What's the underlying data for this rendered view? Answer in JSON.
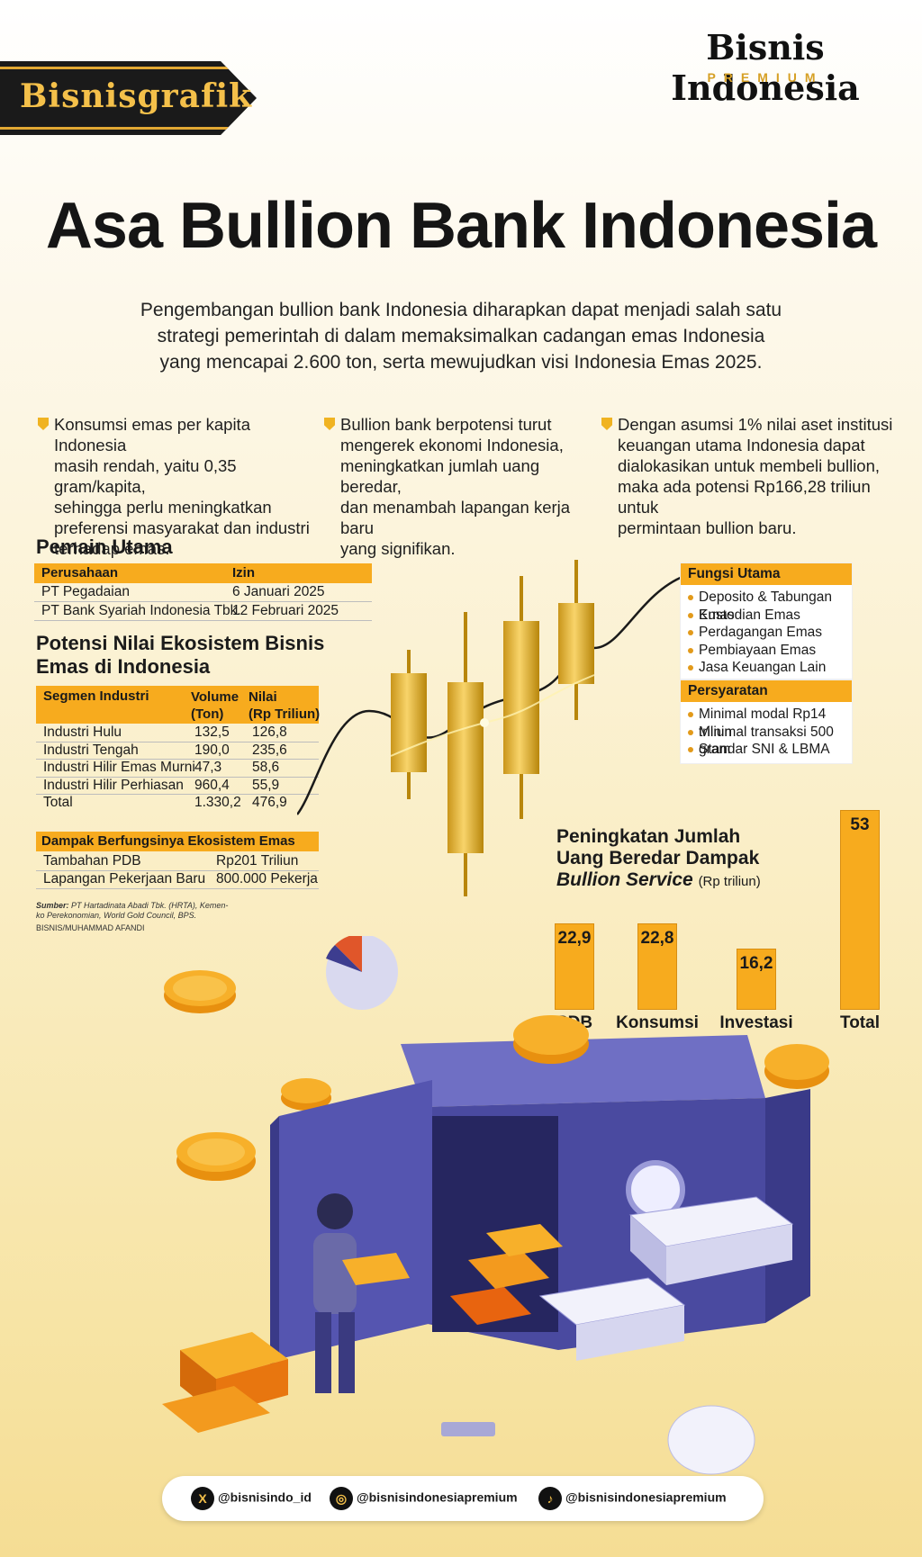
{
  "header": {
    "brand_tag": "Bisnisgrafik",
    "publisher": "Bisnis Indonesia",
    "publisher_sub": "PREMIUM"
  },
  "title": "Asa Bullion Bank Indonesia",
  "intro": "Pengembangan bullion bank Indonesia diharapkan dapat menjadi salah satu strategi pemerintah di dalam memaksimalkan cadangan emas Indonesia yang mencapai 2.600 ton, serta mewujudkan visi Indonesia Emas 2025.",
  "bullets": [
    {
      "lines": [
        "Konsumsi emas per kapita Indonesia",
        "masih rendah, yaitu 0,35 gram/kapita,",
        "sehingga perlu meningkatkan",
        "preferensi masyarakat dan industri",
        "terhadap emas."
      ]
    },
    {
      "lines": [
        "Bullion bank berpotensi turut",
        "mengerek ekonomi Indonesia,",
        "meningkatkan jumlah uang beredar,",
        "dan menambah lapangan kerja baru",
        "yang signifikan."
      ]
    },
    {
      "lines": [
        "Dengan asumsi 1% nilai aset institusi",
        "keuangan utama Indonesia dapat",
        "dialokasikan untuk membeli bullion,",
        "maka ada potensi  Rp166,28 triliun untuk",
        "permintaan bullion baru."
      ]
    }
  ],
  "pemain": {
    "heading": "Pemain Utama",
    "col_company": "Perusahaan",
    "col_permit": "Izin",
    "rows": [
      {
        "company": "PT Pegadaian",
        "permit": "6 Januari 2025"
      },
      {
        "company": "PT Bank Syariah Indonesia Tbk.",
        "permit": "12 Februari 2025"
      }
    ]
  },
  "potensi": {
    "heading_1": "Potensi Nilai Ekosistem Bisnis",
    "heading_2": "Emas di Indonesia",
    "col_segment": "Segmen Industri",
    "col_volume_1": "Volume",
    "col_volume_2": "(Ton)",
    "col_value_1": "Nilai",
    "col_value_2": "(Rp Triliun)",
    "rows": [
      {
        "segment": "Industri Hulu",
        "volume": "132,5",
        "value": "126,8"
      },
      {
        "segment": "Industri Tengah",
        "volume": "190,0",
        "value": "235,6"
      },
      {
        "segment": "Industri Hilir Emas Murni",
        "volume": "47,3",
        "value": "58,6"
      },
      {
        "segment": "Industri Hilir Perhiasan",
        "volume": "960,4",
        "value": "55,9"
      },
      {
        "segment": "Total",
        "volume": "1.330,2",
        "value": "476,9"
      }
    ]
  },
  "dampak": {
    "heading": "Dampak Berfungsinya Ekosistem Emas",
    "rows": [
      {
        "label": "Tambahan PDB",
        "value": "Rp201 Triliun"
      },
      {
        "label": "Lapangan Pekerjaan Baru",
        "value": "800.000 Pekerja"
      }
    ]
  },
  "source": {
    "label": "Sumber:",
    "text_1": "PT Hartadinata Abadi Tbk. (HRTA), Kemen-",
    "text_2": "ko Perekonomian, World Gold Council, BPS.",
    "credit": "BISNIS/MUHAMMAD AFANDI"
  },
  "fungsi": {
    "heading": "Fungsi Utama",
    "items": [
      "Deposito & Tabungan  Emas",
      "Kustodian Emas",
      "Perdagangan Emas",
      "Pembiayaan Emas",
      "Jasa Keuangan Lain"
    ]
  },
  "persyaratan": {
    "heading": "Persyaratan",
    "items": [
      "Minimal modal Rp14 triliun",
      "Minimal transaksi 500 gram",
      "Standar SNI & LBMA"
    ]
  },
  "chart_data": {
    "type": "bar",
    "title": "Peningkatan Jumlah Uang Beredar Dampak Bullion Service",
    "title_line_1": "Peningkatan Jumlah",
    "title_line_2": "Uang Beredar Dampak",
    "title_line_3": "Bullion Service",
    "unit": "(Rp triliun)",
    "categories": [
      "PDB",
      "Konsumsi",
      "Investasi",
      "Total"
    ],
    "values": [
      22.9,
      22.8,
      16.2,
      53
    ],
    "value_labels": [
      "22,9",
      "22,8",
      "16,2",
      "53"
    ],
    "ylim": [
      0,
      53
    ]
  },
  "footer": {
    "x_handle": "@bisnisindo_id",
    "ig_handle": "@bisnisindonesiapremium",
    "tiktok_handle": "@bisnisindonesiapremium"
  },
  "colors": {
    "accent": "#f7ab1e",
    "dark": "#1a1a1a",
    "vault": "#4a4aa0"
  }
}
